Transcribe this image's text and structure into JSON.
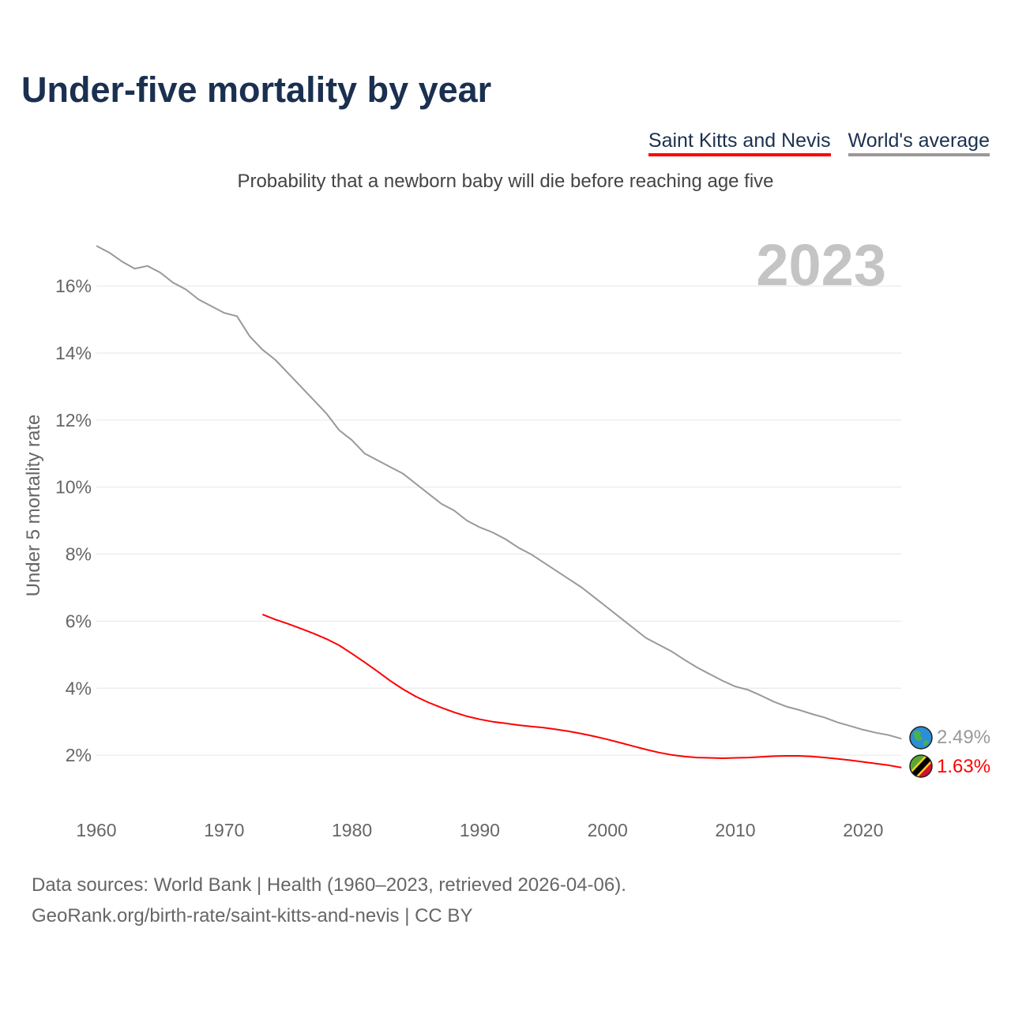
{
  "title": "Under-five mortality by year",
  "legend": {
    "country": "Saint Kitts and Nevis",
    "world": "World's average"
  },
  "subtitle": "Probability that a newborn baby will die before reaching age five",
  "year_label": "2023",
  "end_labels": {
    "world": "2.49%",
    "country": "1.63%"
  },
  "colors": {
    "country": "#ff0000",
    "world": "#999999",
    "title": "#1b3050"
  },
  "source_line1": "Data sources: World Bank | Health (1960–2023, retrieved 2026-04-06).",
  "source_line2": "GeoRank.org/birth-rate/saint-kitts-and-nevis | CC BY",
  "chart_data": {
    "type": "line",
    "title": "Under-five mortality by year",
    "ylabel": "Under 5 mortality rate",
    "xlabel": "",
    "xlim": [
      1960,
      2023
    ],
    "ylim": [
      0,
      17.5
    ],
    "x_ticks": [
      1960,
      1970,
      1980,
      1990,
      2000,
      2010,
      2020
    ],
    "x_tick_labels": [
      "1960",
      "1970",
      "1980",
      "1990",
      "2000",
      "2010",
      "2020"
    ],
    "y_ticks": [
      2,
      4,
      6,
      8,
      10,
      12,
      14,
      16
    ],
    "y_tick_labels": [
      "2%",
      "4%",
      "6%",
      "8%",
      "10%",
      "12%",
      "14%",
      "16%"
    ],
    "grid": true,
    "legend_position": "top-right",
    "series": [
      {
        "name": "World's average",
        "start_year": 1960,
        "values": [
          17.2,
          17.0,
          16.73,
          16.52,
          16.6,
          16.4,
          16.1,
          15.9,
          15.6,
          15.4,
          15.2,
          15.1,
          14.5,
          14.1,
          13.8,
          13.4,
          13.0,
          12.6,
          12.2,
          11.7,
          11.4,
          11.0,
          10.8,
          10.6,
          10.4,
          10.1,
          9.8,
          9.5,
          9.3,
          9.0,
          8.8,
          8.65,
          8.45,
          8.2,
          8.0,
          7.75,
          7.5,
          7.25,
          7.0,
          6.7,
          6.4,
          6.1,
          5.8,
          5.5,
          5.3,
          5.1,
          4.85,
          4.62,
          4.42,
          4.22,
          4.05,
          3.95,
          3.78,
          3.6,
          3.45,
          3.35,
          3.23,
          3.12,
          2.98,
          2.87,
          2.76,
          2.67,
          2.6,
          2.49
        ]
      },
      {
        "name": "Saint Kitts and Nevis",
        "start_year": 1973,
        "values": [
          6.2,
          6.05,
          5.92,
          5.78,
          5.63,
          5.47,
          5.28,
          5.03,
          4.77,
          4.5,
          4.22,
          3.97,
          3.75,
          3.57,
          3.42,
          3.28,
          3.16,
          3.07,
          3.0,
          2.95,
          2.9,
          2.86,
          2.82,
          2.77,
          2.71,
          2.64,
          2.56,
          2.47,
          2.37,
          2.27,
          2.17,
          2.08,
          2.01,
          1.96,
          1.93,
          1.92,
          1.91,
          1.92,
          1.93,
          1.95,
          1.97,
          1.98,
          1.98,
          1.96,
          1.93,
          1.89,
          1.85,
          1.8,
          1.75,
          1.7,
          1.63
        ]
      }
    ]
  }
}
